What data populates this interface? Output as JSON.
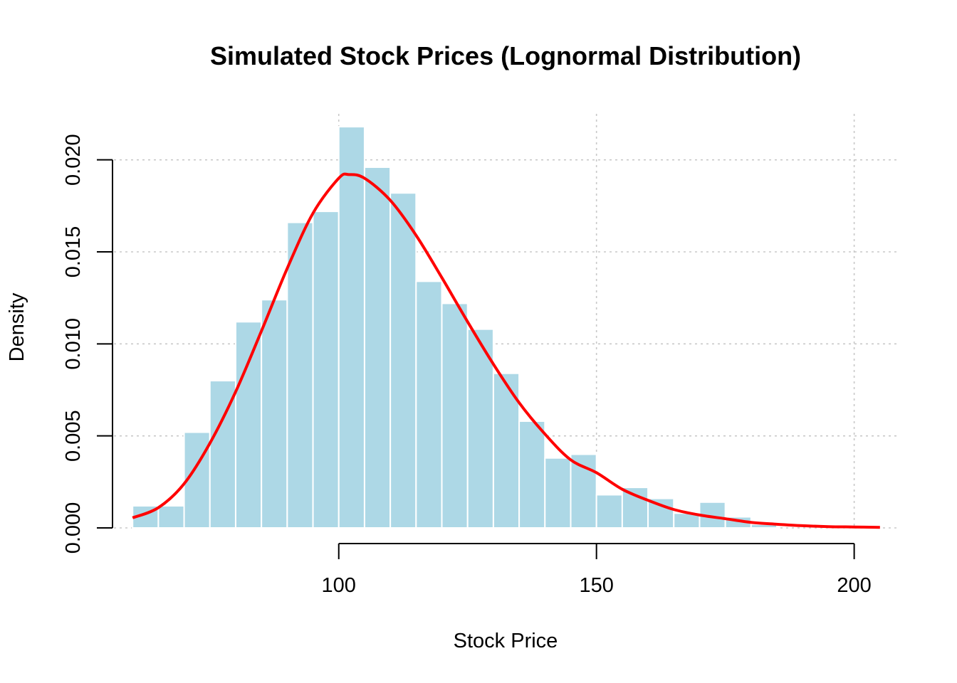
{
  "chart_data": {
    "type": "bar",
    "title": "Simulated Stock Prices (Lognormal Distribution)",
    "xlabel": "Stock Price",
    "ylabel": "Density",
    "xlim": [
      55,
      210
    ],
    "ylim": [
      0,
      0.0225
    ],
    "x_ticks": [
      100,
      150,
      200
    ],
    "x_tick_labels": [
      "100",
      "150",
      "200"
    ],
    "y_ticks": [
      0.0,
      0.005,
      0.01,
      0.015,
      0.02
    ],
    "y_tick_labels": [
      "0.000",
      "0.005",
      "0.010",
      "0.015",
      "0.020"
    ],
    "grid": true,
    "bar_color": "#add8e6",
    "curve_color": "#ff0000",
    "bins": [
      {
        "x0": 60,
        "x1": 65,
        "density": 0.0012
      },
      {
        "x0": 65,
        "x1": 70,
        "density": 0.0012
      },
      {
        "x0": 70,
        "x1": 75,
        "density": 0.0052
      },
      {
        "x0": 75,
        "x1": 80,
        "density": 0.008
      },
      {
        "x0": 80,
        "x1": 85,
        "density": 0.0112
      },
      {
        "x0": 85,
        "x1": 90,
        "density": 0.0124
      },
      {
        "x0": 90,
        "x1": 95,
        "density": 0.0166
      },
      {
        "x0": 95,
        "x1": 100,
        "density": 0.0172
      },
      {
        "x0": 100,
        "x1": 105,
        "density": 0.0218
      },
      {
        "x0": 105,
        "x1": 110,
        "density": 0.0196
      },
      {
        "x0": 110,
        "x1": 115,
        "density": 0.0182
      },
      {
        "x0": 115,
        "x1": 120,
        "density": 0.0134
      },
      {
        "x0": 120,
        "x1": 125,
        "density": 0.0122
      },
      {
        "x0": 125,
        "x1": 130,
        "density": 0.0108
      },
      {
        "x0": 130,
        "x1": 135,
        "density": 0.0084
      },
      {
        "x0": 135,
        "x1": 140,
        "density": 0.0058
      },
      {
        "x0": 140,
        "x1": 145,
        "density": 0.0038
      },
      {
        "x0": 145,
        "x1": 150,
        "density": 0.004
      },
      {
        "x0": 150,
        "x1": 155,
        "density": 0.0018
      },
      {
        "x0": 155,
        "x1": 160,
        "density": 0.0022
      },
      {
        "x0": 160,
        "x1": 165,
        "density": 0.0016
      },
      {
        "x0": 165,
        "x1": 170,
        "density": 0.0008
      },
      {
        "x0": 170,
        "x1": 175,
        "density": 0.0014
      },
      {
        "x0": 175,
        "x1": 180,
        "density": 0.0006
      },
      {
        "x0": 180,
        "x1": 185,
        "density": 0.0002
      },
      {
        "x0": 185,
        "x1": 190,
        "density": 0.0
      },
      {
        "x0": 190,
        "x1": 195,
        "density": 0.0
      },
      {
        "x0": 195,
        "x1": 200,
        "density": 0.0
      },
      {
        "x0": 200,
        "x1": 205,
        "density": 0.0
      }
    ],
    "curve": {
      "x": [
        60,
        65,
        70,
        75,
        80,
        85,
        90,
        95,
        100,
        102,
        105,
        110,
        115,
        120,
        125,
        130,
        135,
        140,
        145,
        150,
        155,
        160,
        165,
        170,
        175,
        180,
        185,
        190,
        195,
        200,
        205
      ],
      "y": [
        0.00055,
        0.0011,
        0.0024,
        0.0046,
        0.0074,
        0.0107,
        0.0141,
        0.0171,
        0.019,
        0.0192,
        0.019,
        0.0178,
        0.0159,
        0.0136,
        0.0112,
        0.0089,
        0.0068,
        0.0051,
        0.0037,
        0.003,
        0.0021,
        0.0015,
        0.001,
        0.0007,
        0.0005,
        0.0003,
        0.0002,
        0.00012,
        7e-05,
        5e-05,
        3e-05
      ]
    }
  }
}
